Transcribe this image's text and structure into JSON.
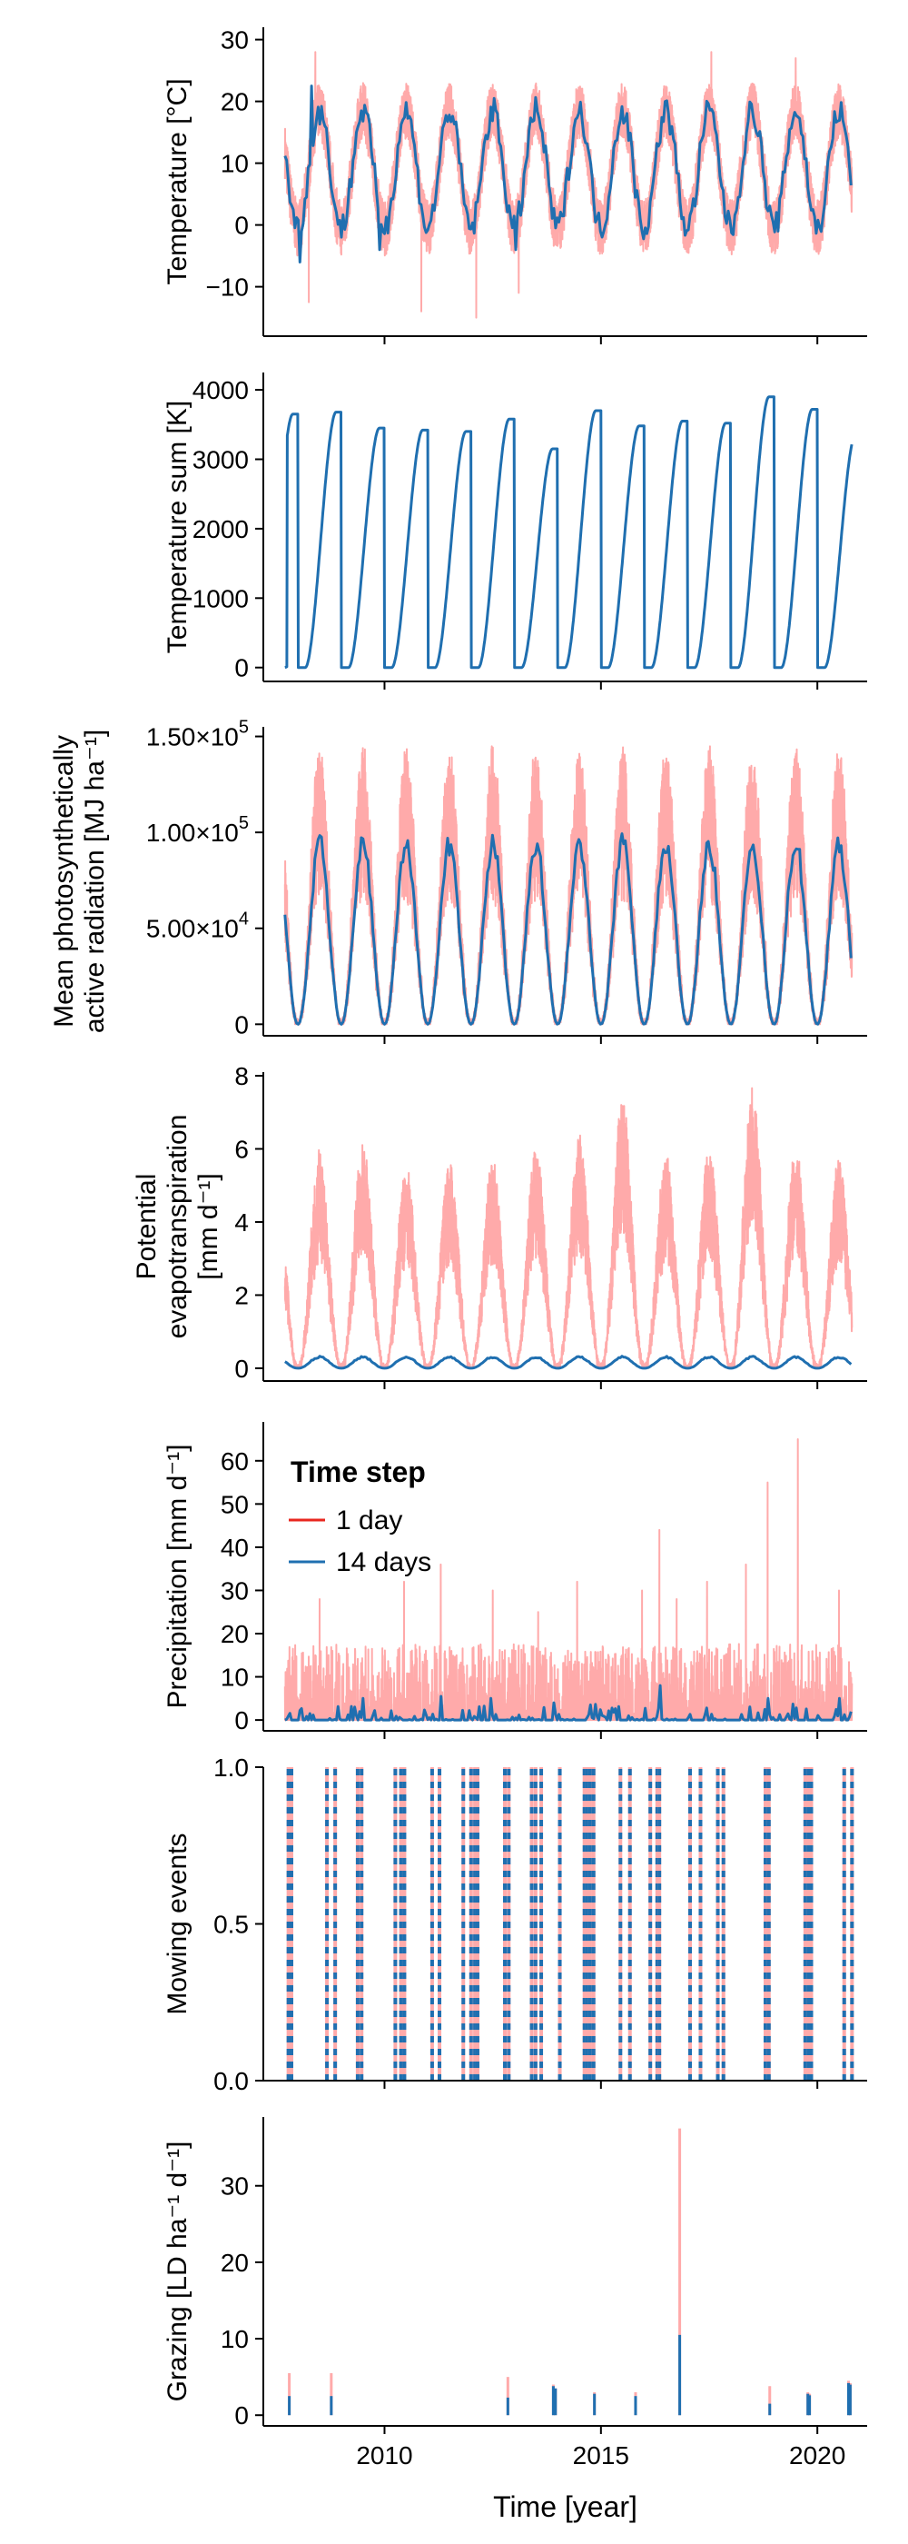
{
  "colors": {
    "one_day": "#ffaaaa",
    "fourteen_days": "#1f6fb0",
    "legend_one_day": "#e8271f"
  },
  "legend": {
    "title": "Time step",
    "items": [
      {
        "label": "1 day",
        "color": "#e8271f"
      },
      {
        "label": "14 days",
        "color": "#1f6fb0"
      }
    ],
    "panel": 4
  },
  "chart_data": [
    {
      "type": "line",
      "id": "temperature",
      "ylabel": [
        "Temperature [°C]"
      ],
      "xlim": [
        2007.2,
        2021.15
      ],
      "ylim": [
        -18,
        32
      ],
      "yticks": [
        -10,
        0,
        10,
        20,
        30
      ],
      "yticklabels": [
        "−10",
        "0",
        "10",
        "20",
        "30"
      ],
      "xticks": [
        2010,
        2015,
        2020
      ],
      "series": [
        {
          "name": "1 day",
          "pattern": "seasonal",
          "start": 2007.7,
          "end": 2020.8,
          "base": 9,
          "amp": 9.5,
          "noise": 4.5,
          "peak_phase": 0.5,
          "extremes": [
            [
              2008.25,
              -12.5
            ],
            [
              2008.4,
              28
            ],
            [
              2010.85,
              -14
            ],
            [
              2012.12,
              -15
            ],
            [
              2013.1,
              -11
            ],
            [
              2017.55,
              28
            ],
            [
              2019.5,
              27
            ]
          ]
        },
        {
          "name": "14 days",
          "pattern": "seasonal",
          "start": 2007.7,
          "end": 2020.8,
          "base": 9,
          "amp": 9.5,
          "noise": 2.2,
          "peak_phase": 0.5,
          "extremes": [
            [
              2008.3,
              22.5
            ],
            [
              2008.05,
              -6
            ],
            [
              2009.9,
              -4
            ],
            [
              2013.05,
              -4
            ]
          ]
        }
      ]
    },
    {
      "type": "line",
      "id": "temperature_sum",
      "ylabel": [
        "Temperature sum [K]"
      ],
      "xlim": [
        2007.2,
        2021.15
      ],
      "ylim": [
        -200,
        4250
      ],
      "yticks": [
        0,
        1000,
        2000,
        3000,
        4000
      ],
      "yticklabels": [
        "0",
        "1000",
        "2000",
        "3000",
        "4000"
      ],
      "xticks": [
        2010,
        2015,
        2020
      ],
      "series": [
        {
          "name": "14 days",
          "pattern": "cumulative",
          "start": 2007.7,
          "end": 2020.8,
          "annual_max": {
            "2007": 3650,
            "2008": 3680,
            "2009": 3450,
            "2010": 3420,
            "2011": 3400,
            "2012": 3580,
            "2013": 3150,
            "2014": 3700,
            "2015": 3480,
            "2016": 3550,
            "2017": 3520,
            "2018": 3900,
            "2019": 3720,
            "2020": 3350
          }
        }
      ]
    },
    {
      "type": "line",
      "id": "par",
      "ylabel": [
        "Mean photosynthetically",
        "active radiation [MJ ha⁻¹]"
      ],
      "xlim": [
        2007.2,
        2021.15
      ],
      "ylim": [
        -6000,
        155000
      ],
      "yticks": [
        0,
        50000,
        100000,
        150000
      ],
      "yticklabels": [
        [
          "0",
          ""
        ],
        [
          "5.00×10",
          "4"
        ],
        [
          "1.00×10",
          "5"
        ],
        [
          "1.50×10",
          "5"
        ]
      ],
      "xticks": [
        2010,
        2015,
        2020
      ],
      "series": [
        {
          "name": "1 day",
          "pattern": "radiation",
          "start": 2007.7,
          "end": 2020.8,
          "peak": 145000,
          "noise": 0.55
        },
        {
          "name": "14 days",
          "pattern": "radiation",
          "start": 2007.7,
          "end": 2020.8,
          "peak": 100000,
          "noise": 0.12
        }
      ]
    },
    {
      "type": "line",
      "id": "pet",
      "ylabel": [
        "Potential",
        "evapotranspiration",
        "[mm d⁻¹]"
      ],
      "xlim": [
        2007.2,
        2021.15
      ],
      "ylim": [
        -0.35,
        8.1
      ],
      "yticks": [
        0,
        2,
        4,
        6,
        8
      ],
      "yticklabels": [
        "0",
        "2",
        "4",
        "6",
        "8"
      ],
      "xticks": [
        2010,
        2015,
        2020
      ],
      "series": [
        {
          "name": "1 day",
          "pattern": "radiation",
          "start": 2007.7,
          "end": 2020.8,
          "peak": 5.6,
          "noise": 0.5,
          "annual_peak": {
            "2008": 5.9,
            "2009": 6.3,
            "2010": 5.5,
            "2011": 5.6,
            "2012": 5.7,
            "2013": 6.0,
            "2014": 6.3,
            "2015": 7.4,
            "2016": 5.8,
            "2017": 6.0,
            "2018": 7.7,
            "2019": 6.0,
            "2020": 5.8
          }
        },
        {
          "name": "14 days",
          "pattern": "radiation",
          "start": 2007.7,
          "end": 2020.8,
          "peak": 0.33,
          "noise": 0.15
        }
      ]
    },
    {
      "type": "line",
      "id": "precipitation",
      "ylabel": [
        "Precipitation [mm d⁻¹]"
      ],
      "xlim": [
        2007.2,
        2021.15
      ],
      "ylim": [
        -2.5,
        69
      ],
      "yticks": [
        0,
        10,
        20,
        30,
        40,
        50,
        60
      ],
      "yticklabels": [
        "0",
        "10",
        "20",
        "30",
        "40",
        "50",
        "60"
      ],
      "xticks": [
        2010,
        2015,
        2020
      ],
      "series": [
        {
          "name": "1 day",
          "pattern": "spikes",
          "start": 2007.7,
          "end": 2020.8,
          "typical": 8,
          "extremes": [
            [
              2008.5,
              28
            ],
            [
              2010.45,
              32
            ],
            [
              2011.3,
              36
            ],
            [
              2012.5,
              30
            ],
            [
              2013.55,
              25
            ],
            [
              2014.45,
              32
            ],
            [
              2015.95,
              30
            ],
            [
              2016.35,
              44
            ],
            [
              2016.75,
              28
            ],
            [
              2017.45,
              32
            ],
            [
              2018.35,
              36
            ],
            [
              2018.85,
              55
            ],
            [
              2019.55,
              65
            ],
            [
              2020.5,
              30
            ]
          ]
        },
        {
          "name": "14 days",
          "pattern": "spikes",
          "start": 2007.7,
          "end": 2020.8,
          "typical": 1.8,
          "extremes": [
            [
              2009.5,
              5
            ],
            [
              2011.3,
              5.5
            ],
            [
              2012.45,
              5
            ],
            [
              2013.9,
              4
            ],
            [
              2016.35,
              8
            ],
            [
              2018.85,
              5
            ],
            [
              2020.5,
              5
            ]
          ]
        }
      ]
    },
    {
      "type": "events",
      "id": "mowing",
      "ylabel": [
        "Mowing events"
      ],
      "xlim": [
        2007.2,
        2021.15
      ],
      "ylim": [
        0,
        1.0
      ],
      "yticks": [
        0,
        0.5,
        1.0
      ],
      "yticklabels": [
        "0.0",
        "0.5",
        "1.0"
      ],
      "xticks": [
        2010,
        2015,
        2020
      ],
      "events": [
        2007.78,
        2007.85,
        2008.67,
        2008.86,
        2009.38,
        2009.47,
        2010.25,
        2010.38,
        2010.46,
        2011.1,
        2011.27,
        2011.82,
        2012.0,
        2012.09,
        2012.15,
        2012.78,
        2012.87,
        2013.4,
        2013.49,
        2013.62,
        2014.05,
        2014.62,
        2014.68,
        2014.75,
        2014.83,
        2015.45,
        2015.67,
        2016.14,
        2016.3,
        2016.35,
        2017.06,
        2017.3,
        2017.7,
        2017.83,
        2018.8,
        2018.88,
        2019.72,
        2019.79,
        2019.86,
        2020.62,
        2020.8
      ]
    },
    {
      "type": "spikes",
      "id": "grazing",
      "ylabel": [
        "Grazing [LD ha⁻¹ d⁻¹]"
      ],
      "xlim": [
        2007.2,
        2021.15
      ],
      "ylim": [
        -1.4,
        39
      ],
      "yticks": [
        0,
        10,
        20,
        30
      ],
      "yticklabels": [
        "0",
        "10",
        "20",
        "30"
      ],
      "xticks": [
        2010,
        2015,
        2020
      ],
      "xticklabels": [
        "2010",
        "2015",
        "2020"
      ],
      "xlabel": "Time [year]",
      "series": [
        {
          "name": "1 day",
          "points": [
            [
              2007.8,
              5.5
            ],
            [
              2008.77,
              5.5
            ],
            [
              2012.85,
              5.0
            ],
            [
              2013.9,
              4.0
            ],
            [
              2013.95,
              3.5
            ],
            [
              2014.85,
              3.0
            ],
            [
              2015.8,
              3.0
            ],
            [
              2016.82,
              37.5
            ],
            [
              2018.9,
              3.8
            ],
            [
              2019.78,
              3.0
            ],
            [
              2019.82,
              2.8
            ],
            [
              2020.72,
              4.5
            ],
            [
              2020.76,
              4.2
            ]
          ]
        },
        {
          "name": "14 days",
          "points": [
            [
              2007.8,
              2.5
            ],
            [
              2008.77,
              2.5
            ],
            [
              2012.85,
              2.3
            ],
            [
              2013.9,
              3.8
            ],
            [
              2013.95,
              3.5
            ],
            [
              2014.85,
              2.8
            ],
            [
              2015.8,
              2.5
            ],
            [
              2016.82,
              10.5
            ],
            [
              2018.9,
              1.5
            ],
            [
              2019.78,
              2.8
            ],
            [
              2019.82,
              2.6
            ],
            [
              2020.72,
              4.2
            ],
            [
              2020.76,
              4.0
            ]
          ]
        }
      ]
    }
  ]
}
